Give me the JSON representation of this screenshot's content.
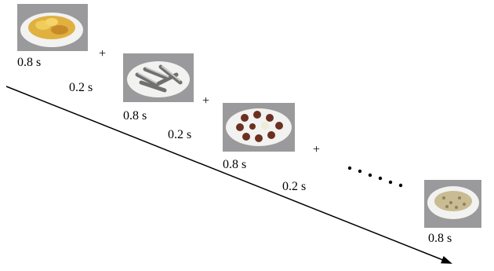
{
  "frames": [
    {
      "duration": "0.8 s"
    },
    {
      "duration": "0.8 s"
    },
    {
      "duration": "0.8 s"
    },
    {
      "duration": "0.8 s"
    }
  ],
  "intervals": [
    {
      "duration": "0.2 s",
      "fixation": "+"
    },
    {
      "duration": "0.2 s",
      "fixation": "+"
    },
    {
      "duration": "0.2 s",
      "fixation": "+"
    }
  ]
}
